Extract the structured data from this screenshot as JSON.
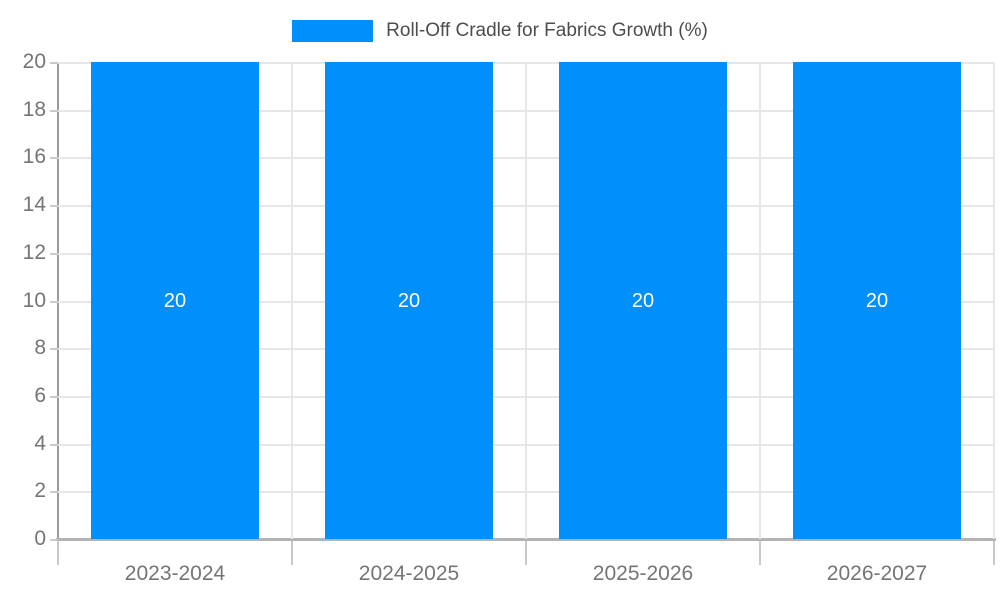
{
  "chart_data": {
    "type": "bar",
    "title": "Roll-Off Cradle for Fabrics Growth (%)",
    "categories": [
      "2023-2024",
      "2024-2025",
      "2025-2026",
      "2026-2027"
    ],
    "values": [
      20,
      20,
      20,
      20
    ],
    "bar_labels": [
      "20",
      "20",
      "20",
      "20"
    ],
    "xlabel": "",
    "ylabel": "",
    "ylim": [
      0,
      20
    ],
    "ytick_step": 2,
    "yticks": [
      0,
      2,
      4,
      6,
      8,
      10,
      12,
      14,
      16,
      18,
      20
    ],
    "grid": true,
    "legend_position": "top-center",
    "colors": {
      "bar": "#008FFB",
      "bar_label": "#ffffff",
      "grid": "#e7e7e7",
      "axis_y": "#9b9b9b",
      "axis_x": "#b3b3b3",
      "tick": "#c9c9c9",
      "tick_label": "#757575",
      "legend_text": "#4d4d4d",
      "background": "#ffffff"
    }
  }
}
